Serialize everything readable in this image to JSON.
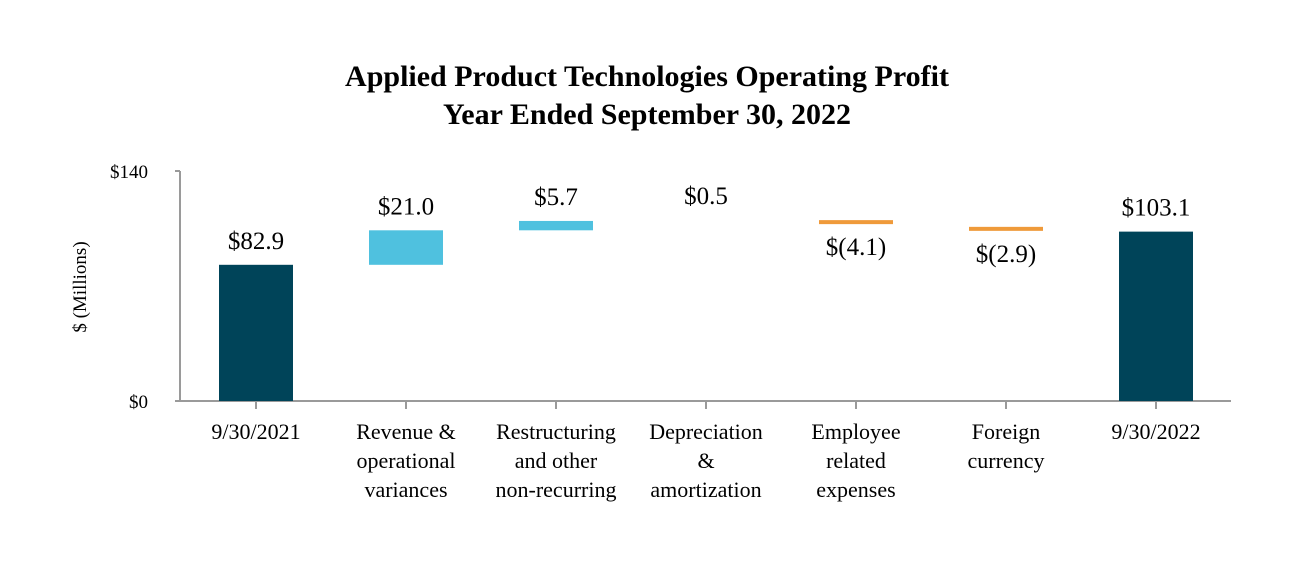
{
  "chart_data": {
    "type": "waterfall",
    "title": "Applied Product Technologies Operating Profit",
    "subtitle": "Year Ended September 30, 2022",
    "ylabel": "$ (Millions)",
    "ylim": [
      0,
      140
    ],
    "yticks": [
      {
        "value": 0,
        "label": "$0"
      },
      {
        "value": 140,
        "label": "$140"
      }
    ],
    "grid": false,
    "colors": {
      "total": "#004459",
      "increase": "#4fc1df",
      "decrease": "#ef9a3a",
      "axis": "#9a9a9a"
    },
    "steps": [
      {
        "category": [
          "9/30/2021"
        ],
        "kind": "total",
        "value": 82.9,
        "label": "$82.9"
      },
      {
        "category": [
          "Revenue &",
          "operational",
          "variances"
        ],
        "kind": "increase",
        "value": 21.0,
        "label": "$21.0"
      },
      {
        "category": [
          "Restructuring",
          "and other",
          "non-recurring"
        ],
        "kind": "increase",
        "value": 5.7,
        "label": "$5.7"
      },
      {
        "category": [
          "Depreciation",
          "&",
          "amortization"
        ],
        "kind": "increase",
        "value": 0.5,
        "label": "$0.5"
      },
      {
        "category": [
          "Employee",
          "related",
          "expenses"
        ],
        "kind": "decrease",
        "value": -4.1,
        "label": "$(4.1)"
      },
      {
        "category": [
          "Foreign",
          "currency"
        ],
        "kind": "decrease",
        "value": -2.9,
        "label": "$(2.9)"
      },
      {
        "category": [
          "9/30/2022"
        ],
        "kind": "total",
        "value": 103.1,
        "label": "$103.1"
      }
    ]
  }
}
